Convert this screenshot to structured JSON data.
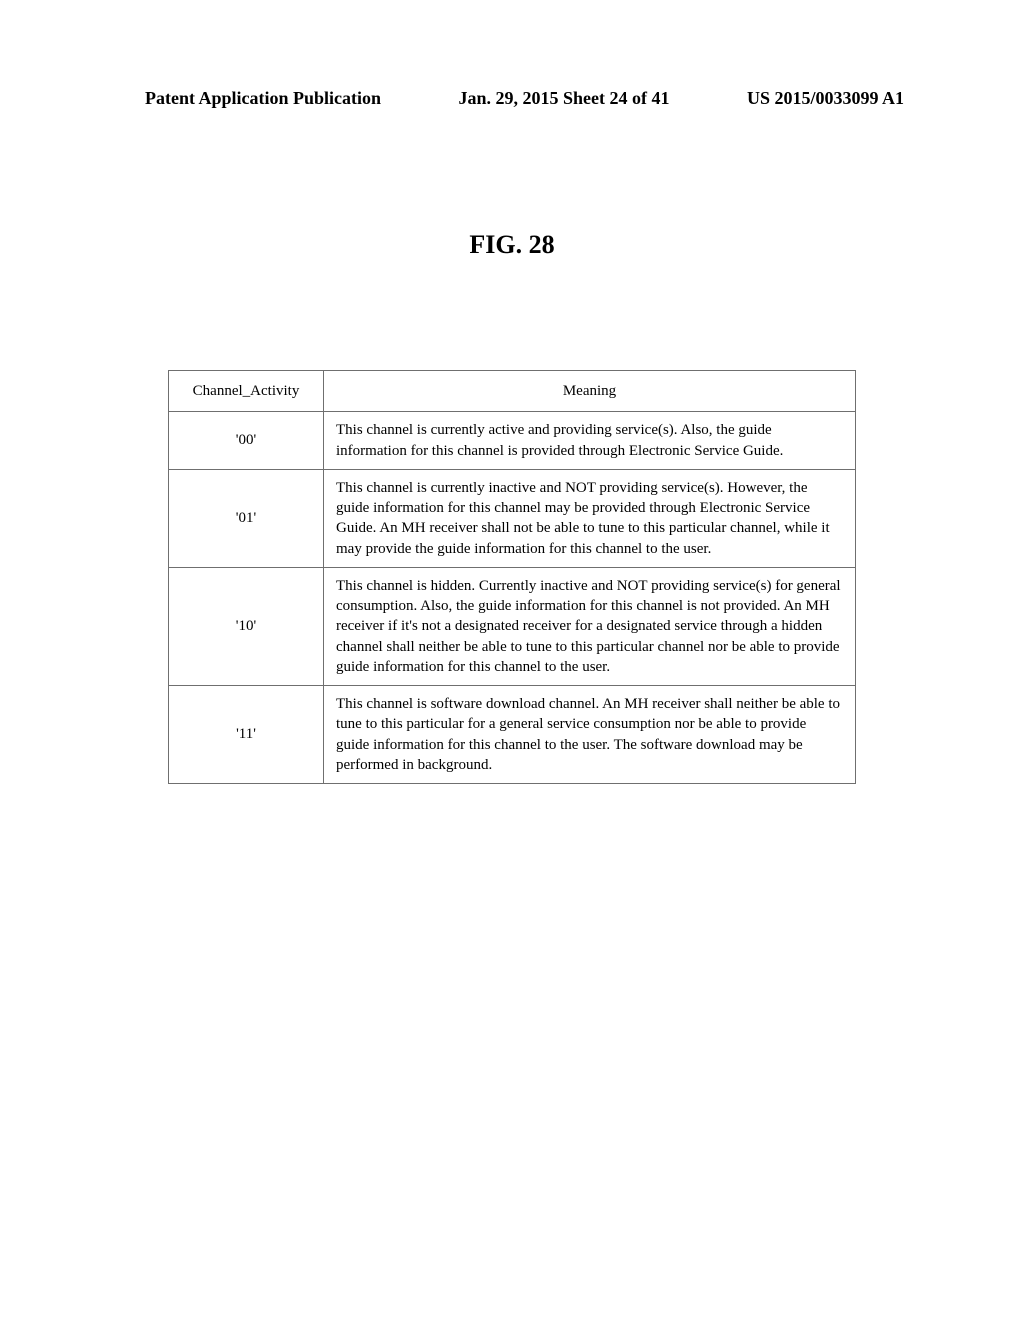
{
  "header": {
    "left": "Patent Application Publication",
    "center": "Jan. 29, 2015  Sheet 24 of 41",
    "right": "US 2015/0033099 A1"
  },
  "figure": {
    "label": "FIG. 28"
  },
  "table": {
    "columns": [
      "Channel_Activity",
      "Meaning"
    ],
    "rows": [
      {
        "activity": "'00'",
        "meaning": "This channel is currently active and providing service(s). Also, the guide information for this channel is provided through Electronic Service Guide."
      },
      {
        "activity": "'01'",
        "meaning": "This channel is currently inactive and NOT providing service(s). However, the guide information for this channel may be provided through Electronic Service Guide. An MH receiver shall not be able to tune to this particular channel, while it may provide the guide information for this channel to the user."
      },
      {
        "activity": "'10'",
        "meaning": "This channel is hidden. Currently inactive and NOT providing service(s) for general consumption. Also, the guide information for this channel is not provided. An MH receiver if it's not a designated receiver for a designated service through a hidden channel shall neither be able to tune to this particular channel nor be able to provide guide information for this channel to the user."
      },
      {
        "activity": "'11'",
        "meaning": "This channel is software download channel. An MH receiver shall neither be able to tune to this particular for a general service consumption nor be able to provide guide information for this channel to the user. The software download may be performed in background."
      }
    ]
  }
}
